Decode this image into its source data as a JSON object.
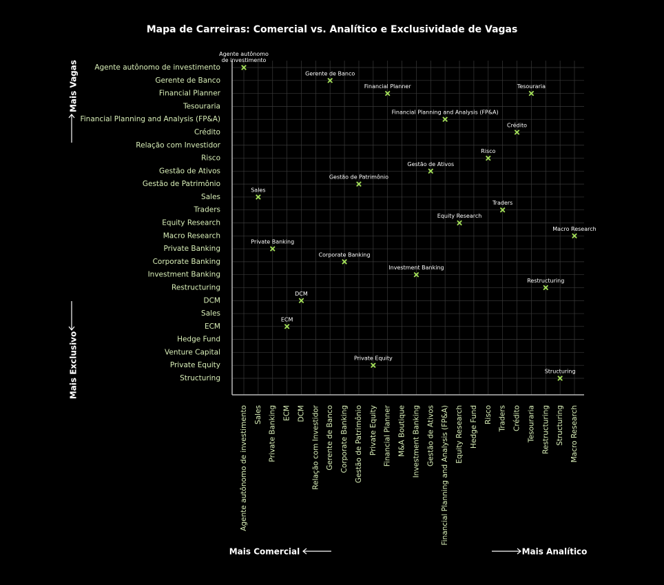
{
  "chart_data": {
    "type": "scatter",
    "title": "Mapa de Carreiras: Comercial vs. Analítico e Exclusividade de Vagas",
    "x_label_left": "Mais Comercial",
    "x_label_right": "Mais Analítico",
    "y_label_top": "Mais Vagas",
    "y_label_bottom": "Mais Exclusivo",
    "color": "#a6e35a",
    "label_color": "#d9efb8",
    "grid": true,
    "x_categories": [
      "Agente autônomo de investimento",
      "Sales",
      "Private Banking",
      "ECM",
      "DCM",
      "Relação com Investidor",
      "Gerente de Banco",
      "Corporate Banking",
      "Gestão de Patrimônio",
      "Private Equity",
      "Financial Planner",
      "M&A Boutique",
      "Investment Banking",
      "Gestão de Ativos",
      "Financial Planning and Analysis (FP&A)",
      "Equity Research",
      "Hedge Fund",
      "Risco",
      "Traders",
      "Crédito",
      "Tesouraria",
      "Restructuring",
      "Structuring",
      "Macro Research"
    ],
    "y_categories": [
      "Agente autônomo de investimento",
      "Gerente de Banco",
      "Financial Planner",
      "Tesouraria",
      "Financial Planning and Analysis (FP&A)",
      "Crédito",
      "Relação com Investidor",
      "Risco",
      "Gestão de Ativos",
      "Gestão de Patrimônio",
      "Sales",
      "Traders",
      "Equity Research",
      "Macro Research",
      "Private Banking",
      "Corporate Banking",
      "Investment Banking",
      "Restructuring",
      "DCM",
      "Sales",
      "ECM",
      "Hedge Fund",
      "Venture Capital",
      "Private Equity",
      "Structuring"
    ],
    "points": [
      {
        "label": [
          "Agente autônomo",
          "de investimento"
        ],
        "x": 0,
        "y": 0
      },
      {
        "label": "Gerente de Banco",
        "x": 6,
        "y": 1
      },
      {
        "label": "Financial Planner",
        "x": 10,
        "y": 2
      },
      {
        "label": "Tesouraria",
        "x": 20,
        "y": 2
      },
      {
        "label": "Financial Planning and Analysis (FP&A)",
        "x": 14,
        "y": 4
      },
      {
        "label": "Crédito",
        "x": 19,
        "y": 5
      },
      {
        "label": "Risco",
        "x": 17,
        "y": 7
      },
      {
        "label": "Gestão de Ativos",
        "x": 13,
        "y": 8
      },
      {
        "label": "Gestão de Patrimônio",
        "x": 8,
        "y": 9
      },
      {
        "label": "Sales",
        "x": 1,
        "y": 10
      },
      {
        "label": "Traders",
        "x": 18,
        "y": 11
      },
      {
        "label": "Equity Research",
        "x": 15,
        "y": 12
      },
      {
        "label": "Macro Research",
        "x": 23,
        "y": 13
      },
      {
        "label": "Private Banking",
        "x": 2,
        "y": 14
      },
      {
        "label": "Corporate Banking",
        "x": 7,
        "y": 15
      },
      {
        "label": "Investment Banking",
        "x": 12,
        "y": 16
      },
      {
        "label": "Restructuring",
        "x": 21,
        "y": 17
      },
      {
        "label": "DCM",
        "x": 4,
        "y": 18
      },
      {
        "label": "ECM",
        "x": 3,
        "y": 20
      },
      {
        "label": "Private Equity",
        "x": 9,
        "y": 23
      },
      {
        "label": "Structuring",
        "x": 22,
        "y": 24
      }
    ]
  }
}
